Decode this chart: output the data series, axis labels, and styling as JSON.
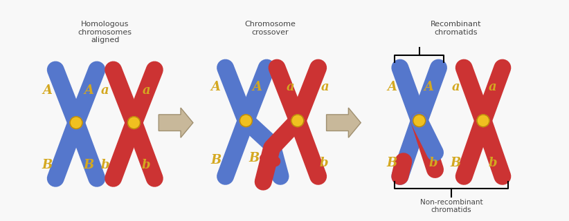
{
  "background_color": "#f8f8f8",
  "blue_color": "#5577cc",
  "red_color": "#cc3333",
  "yellow_color": "#f0c020",
  "arrow_color": "#c8b89a",
  "text_color": "#444444",
  "label_color": "#d4a820",
  "labels": {
    "group1_title": "Homologous\nchromosomes\naligned",
    "group2_title": "Chromosome\ncrossover",
    "group3_title": "Recombinant\nchromatids",
    "group3_subtitle": "Non-recombinant\nchromatids"
  },
  "figsize": [
    8.22,
    3.2
  ],
  "dpi": 100
}
